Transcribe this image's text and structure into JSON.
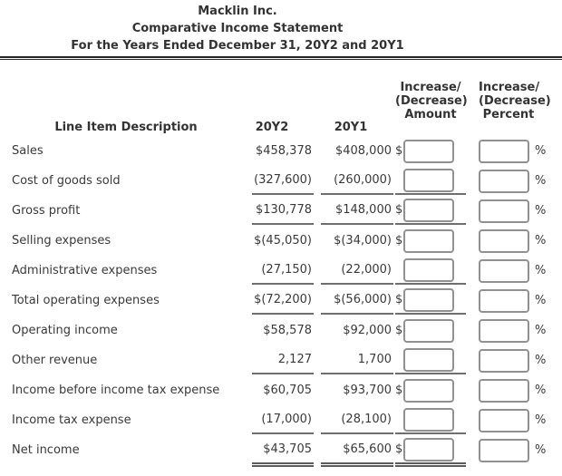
{
  "statement_header": {
    "company": "Macklin Inc.",
    "title": "Comparative Income Statement",
    "period": "For the Years Ended December 31, 20Y2 and 20Y1"
  },
  "table": {
    "col_description": "Line Item Description",
    "col_year2": "20Y2",
    "col_year1": "20Y1",
    "col_amount": [
      "Increase/",
      "(Decrease)",
      "Amount"
    ],
    "col_percent": [
      "Increase/",
      "(Decrease)",
      "Percent"
    ],
    "percent_suffix": "%",
    "rows": [
      {
        "label": "Sales",
        "y2": "$458,378",
        "y1": "$408,000",
        "dollar": "$",
        "amount": "",
        "percent": "",
        "rule": "none"
      },
      {
        "label": "Cost of goods sold",
        "y2": "(327,600)",
        "y1": "(260,000)",
        "dollar": "",
        "amount": "",
        "percent": "",
        "rule": "single"
      },
      {
        "label": "Gross profit",
        "y2": "$130,778",
        "y1": "$148,000",
        "dollar": "$",
        "amount": "",
        "percent": "",
        "rule": "single"
      },
      {
        "label": "Selling expenses",
        "y2": "$(45,050)",
        "y1": "$(34,000)",
        "dollar": "$",
        "amount": "",
        "percent": "",
        "rule": "none"
      },
      {
        "label": "Administrative expenses",
        "y2": "(27,150)",
        "y1": "(22,000)",
        "dollar": "",
        "amount": "",
        "percent": "",
        "rule": "single"
      },
      {
        "label": "Total operating expenses",
        "y2": "$(72,200)",
        "y1": "$(56,000)",
        "dollar": "$",
        "amount": "",
        "percent": "",
        "rule": "single"
      },
      {
        "label": "Operating income",
        "y2": "$58,578",
        "y1": "$92,000",
        "dollar": "$",
        "amount": "",
        "percent": "",
        "rule": "none"
      },
      {
        "label": "Other revenue",
        "y2": "2,127",
        "y1": "1,700",
        "dollar": "",
        "amount": "",
        "percent": "",
        "rule": "single"
      },
      {
        "label": "Income before income tax expense",
        "y2": "$60,705",
        "y1": "$93,700",
        "dollar": "$",
        "amount": "",
        "percent": "",
        "rule": "none"
      },
      {
        "label": "Income tax expense",
        "y2": "(17,000)",
        "y1": "(28,100)",
        "dollar": "",
        "amount": "",
        "percent": "",
        "rule": "single"
      },
      {
        "label": "Net income",
        "y2": "$43,705",
        "y1": "$65,600",
        "dollar": "$",
        "amount": "",
        "percent": "",
        "rule": "double"
      }
    ]
  }
}
